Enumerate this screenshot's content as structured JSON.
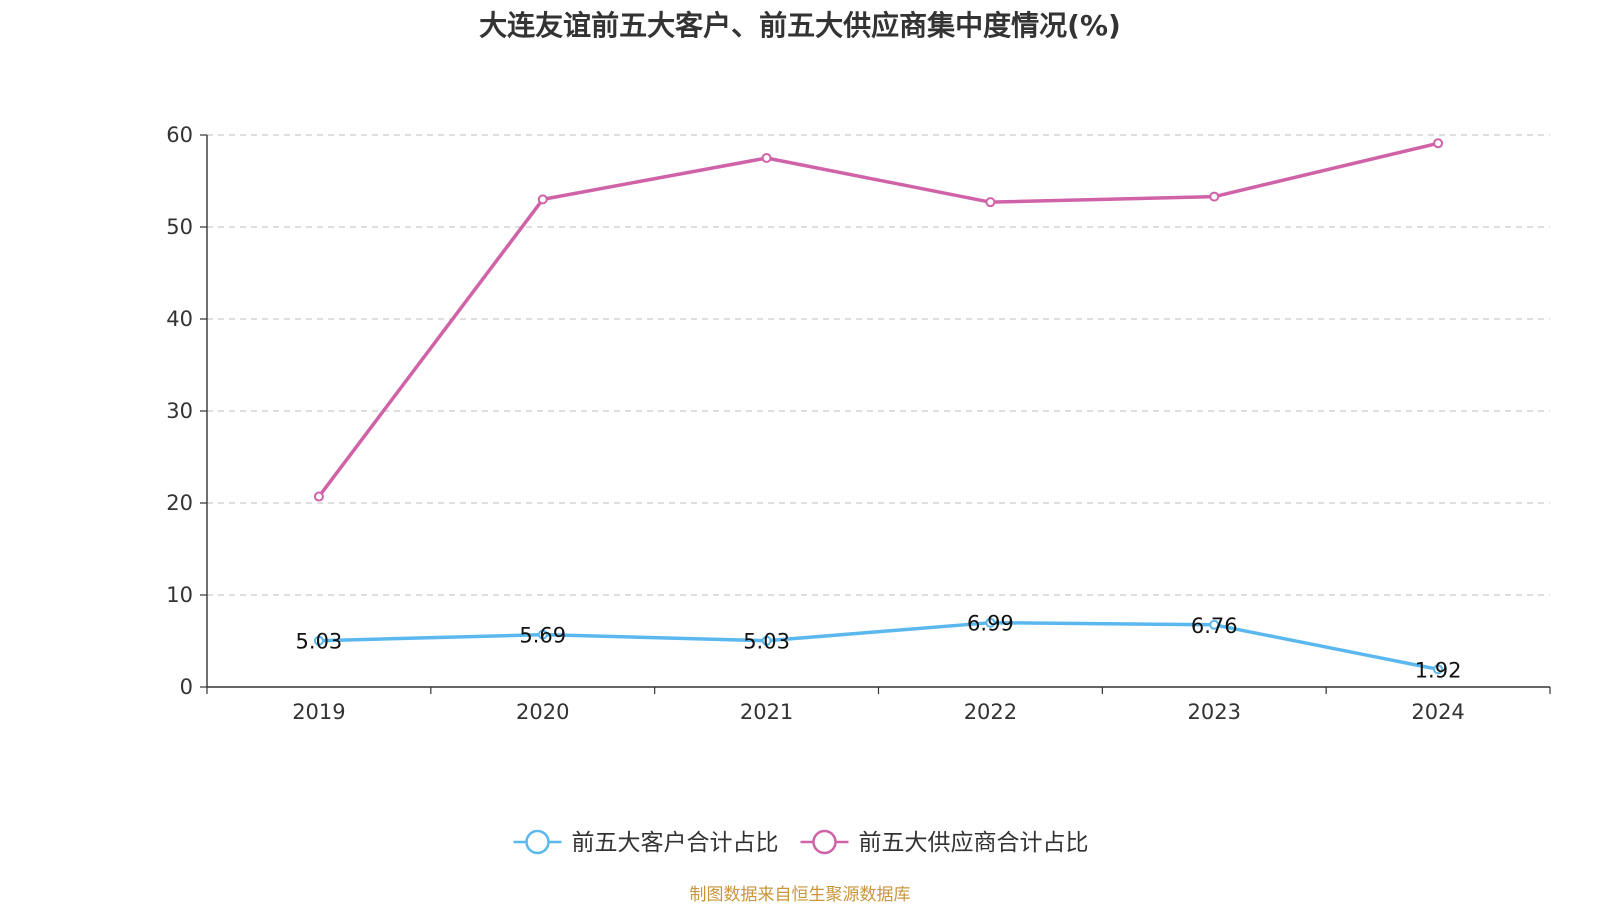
{
  "chart_data": {
    "type": "line",
    "title": "大连友谊前五大客户、前五大供应商集中度情况(%)",
    "categories": [
      "2019",
      "2020",
      "2021",
      "2022",
      "2023",
      "2024"
    ],
    "ylim": [
      0,
      60
    ],
    "yticks": [
      0,
      10,
      20,
      30,
      40,
      50,
      60
    ],
    "grid": true,
    "legend_position": "bottom",
    "series": [
      {
        "name": "前五大客户合计占比",
        "color": "#5bb8ee",
        "values": [
          5.03,
          5.69,
          5.03,
          6.99,
          6.76,
          1.92
        ],
        "labels": [
          "5.03",
          "5.69",
          "5.03",
          "6.99",
          "6.76",
          "1.92"
        ]
      },
      {
        "name": "前五大供应商合计占比",
        "color": "#d062a8",
        "values": [
          20.7,
          53.0,
          57.5,
          52.7,
          53.3,
          59.1
        ]
      }
    ]
  },
  "source": "制图数据来自恒生聚源数据库"
}
